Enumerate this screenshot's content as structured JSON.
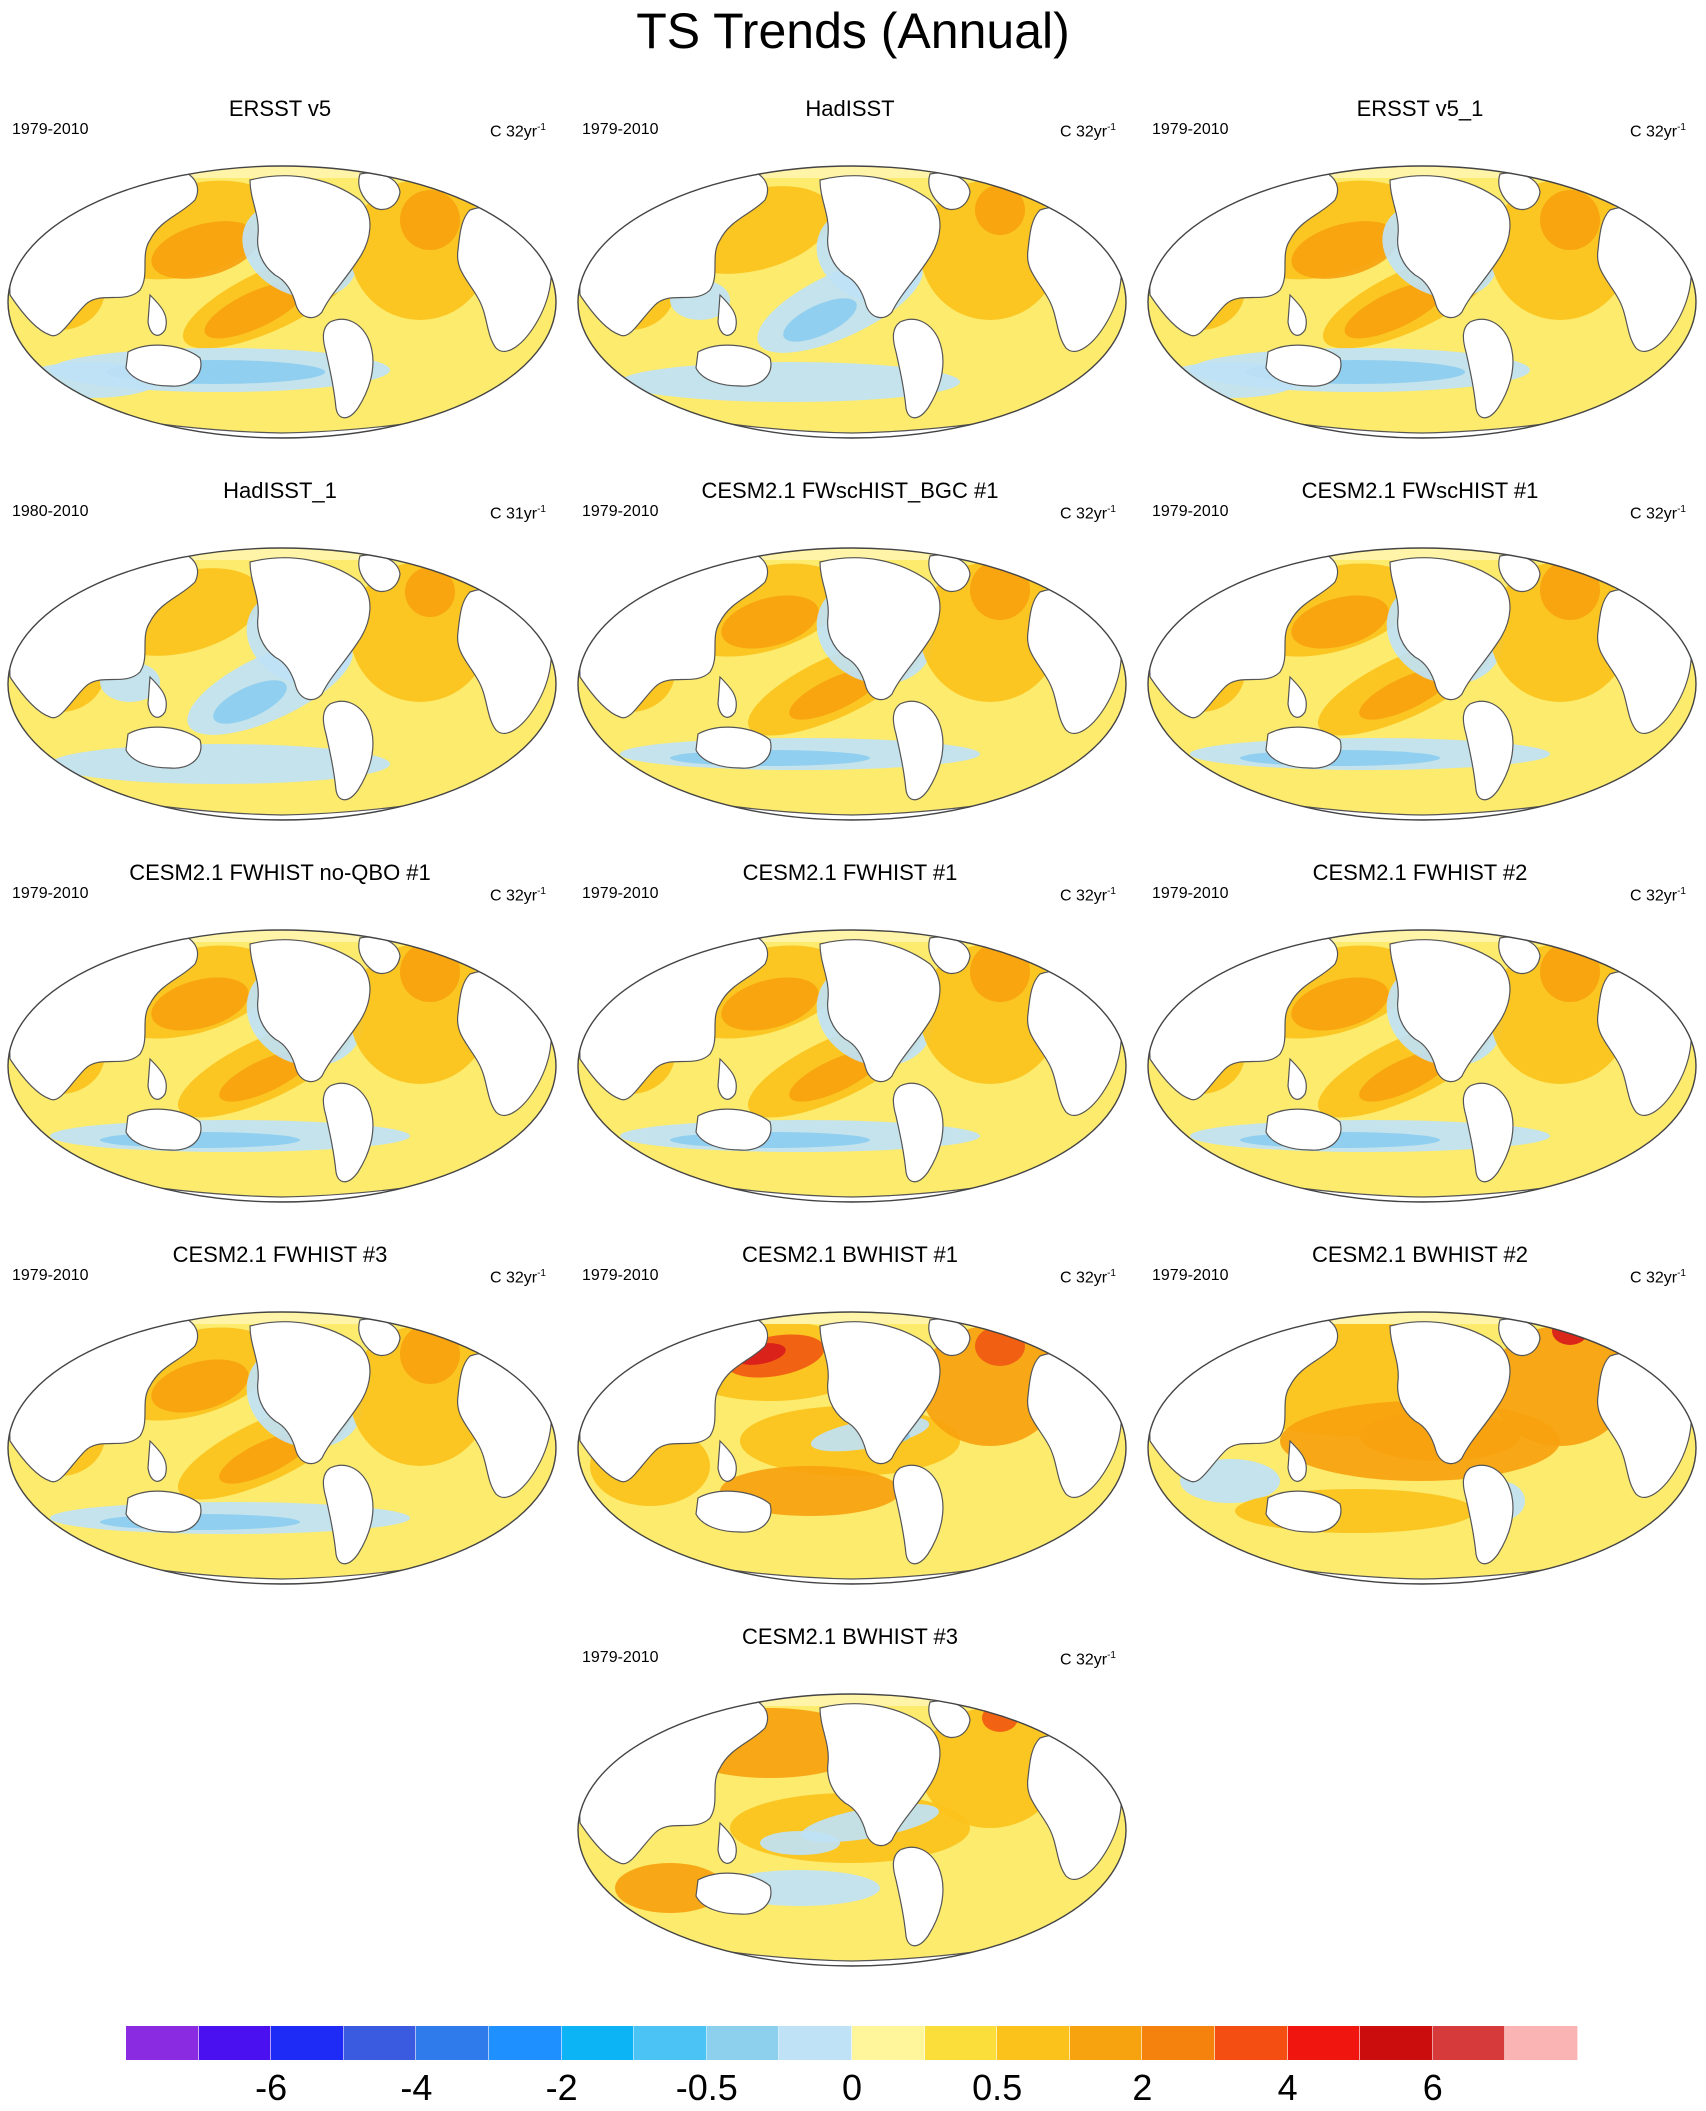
{
  "figure_title": "TS Trends (Annual)",
  "palette": {
    "ocean_base": "#FDEB6E",
    "warm": "#FBC21B",
    "warmer": "#F7A20F",
    "hot": "#F05A12",
    "hotter": "#D81B1B",
    "cool": "#BFE2F6",
    "cooler": "#8CCDF0",
    "coolest": "#4FB6EC",
    "land": "#FFFFFF",
    "coast": "#555555"
  },
  "panels": [
    {
      "title": "ERSST v5",
      "period": "1979-2010",
      "units": "C 32yr",
      "units_exp": "-1",
      "pattern": "obs"
    },
    {
      "title": "HadISST",
      "period": "1979-2010",
      "units": "C 32yr",
      "units_exp": "-1",
      "pattern": "obs_noisy"
    },
    {
      "title": "ERSST v5_1",
      "period": "1979-2010",
      "units": "C 32yr",
      "units_exp": "-1",
      "pattern": "obs"
    },
    {
      "title": "HadISST_1",
      "period": "1980-2010",
      "units": "C 31yr",
      "units_exp": "-1",
      "pattern": "obs_noisy"
    },
    {
      "title": "CESM2.1 FWscHIST_BGC #1",
      "period": "1979-2010",
      "units": "C 32yr",
      "units_exp": "-1",
      "pattern": "amip"
    },
    {
      "title": "CESM2.1 FWscHIST #1",
      "period": "1979-2010",
      "units": "C 32yr",
      "units_exp": "-1",
      "pattern": "amip"
    },
    {
      "title": "CESM2.1 FWHIST no-QBO #1",
      "period": "1979-2010",
      "units": "C 32yr",
      "units_exp": "-1",
      "pattern": "amip"
    },
    {
      "title": "CESM2.1 FWHIST #1",
      "period": "1979-2010",
      "units": "C 32yr",
      "units_exp": "-1",
      "pattern": "amip"
    },
    {
      "title": "CESM2.1 FWHIST #2",
      "period": "1979-2010",
      "units": "C 32yr",
      "units_exp": "-1",
      "pattern": "amip"
    },
    {
      "title": "CESM2.1 FWHIST #3",
      "period": "1979-2010",
      "units": "C 32yr",
      "units_exp": "-1",
      "pattern": "amip"
    },
    {
      "title": "CESM2.1 BWHIST #1",
      "period": "1979-2010",
      "units": "C 32yr",
      "units_exp": "-1",
      "pattern": "coupled_hot"
    },
    {
      "title": "CESM2.1 BWHIST #2",
      "period": "1979-2010",
      "units": "C 32yr",
      "units_exp": "-1",
      "pattern": "coupled_warm"
    },
    {
      "title": "CESM2.1 BWHIST #3",
      "period": "1979-2010",
      "units": "C 32yr",
      "units_exp": "-1",
      "pattern": "coupled"
    }
  ],
  "colorbar": {
    "colors": [
      "#8A2BE2",
      "#4B10F0",
      "#1E2AF5",
      "#3A5BE0",
      "#2F7BEB",
      "#1E90FF",
      "#0CB4F5",
      "#4CC3F5",
      "#8CD0EE",
      "#BFE2F6",
      "#FFF59A",
      "#FBDE3A",
      "#FBC21B",
      "#F7A20F",
      "#F5820D",
      "#F54E12",
      "#F0160F",
      "#CC0D0D",
      "#D63A3A",
      "#FBB4B4"
    ],
    "labels": [
      "-6",
      "-4",
      "-2",
      "-0.5",
      "0",
      "0.5",
      "2",
      "4",
      "6"
    ],
    "label_edges": [
      2,
      4,
      6,
      8,
      10,
      12,
      14,
      16,
      18
    ]
  }
}
